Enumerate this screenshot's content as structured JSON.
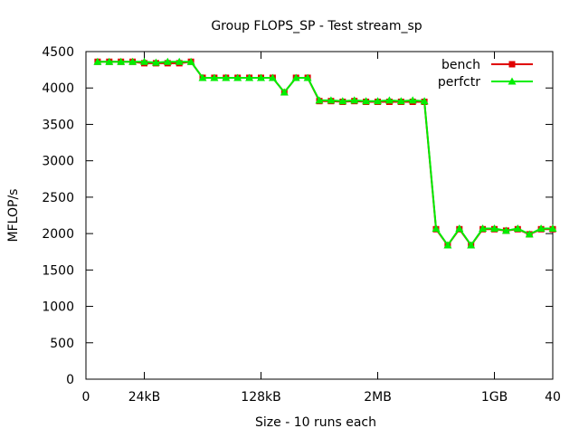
{
  "chart_data": {
    "type": "line",
    "title": "Group FLOPS_SP - Test stream_sp",
    "xlabel": "Size - 10 runs each",
    "ylabel": "MFLOP/s",
    "xlim": [
      0,
      40
    ],
    "ylim": [
      0,
      4500
    ],
    "x_ticks": [
      {
        "value": 0,
        "label": "0"
      },
      {
        "value": 5,
        "label": "24kB"
      },
      {
        "value": 15,
        "label": "128kB"
      },
      {
        "value": 25,
        "label": "2MB"
      },
      {
        "value": 35,
        "label": "1GB"
      },
      {
        "value": 40,
        "label": "40"
      }
    ],
    "y_ticks": [
      0,
      500,
      1000,
      1500,
      2000,
      2500,
      3000,
      3500,
      4000,
      4500
    ],
    "legend_position": "top-right",
    "grid": false,
    "x": [
      1,
      2,
      3,
      4,
      5,
      6,
      7,
      8,
      9,
      10,
      11,
      12,
      13,
      14,
      15,
      16,
      17,
      18,
      19,
      20,
      21,
      22,
      23,
      24,
      25,
      26,
      27,
      28,
      29,
      30,
      31,
      32,
      33,
      34,
      35,
      36,
      37,
      38,
      39,
      40
    ],
    "series": [
      {
        "name": "bench",
        "color": "#e00000",
        "marker": "square",
        "values": [
          4360,
          4360,
          4360,
          4360,
          4340,
          4340,
          4340,
          4340,
          4360,
          4140,
          4140,
          4140,
          4140,
          4140,
          4140,
          4140,
          3940,
          4140,
          4140,
          3820,
          3820,
          3810,
          3820,
          3810,
          3810,
          3810,
          3810,
          3810,
          3810,
          2060,
          1840,
          2060,
          1840,
          2060,
          2060,
          2040,
          2060,
          1990,
          2060,
          2060
        ]
      },
      {
        "name": "perfctr",
        "color": "#00ee00",
        "marker": "triangle",
        "values": [
          4360,
          4360,
          4360,
          4360,
          4360,
          4350,
          4360,
          4360,
          4360,
          4140,
          4140,
          4140,
          4140,
          4140,
          4140,
          4140,
          3940,
          4140,
          4140,
          3830,
          3830,
          3820,
          3830,
          3820,
          3820,
          3830,
          3820,
          3830,
          3820,
          2070,
          1840,
          2070,
          1840,
          2070,
          2070,
          2040,
          2070,
          1990,
          2070,
          2070
        ]
      }
    ]
  }
}
